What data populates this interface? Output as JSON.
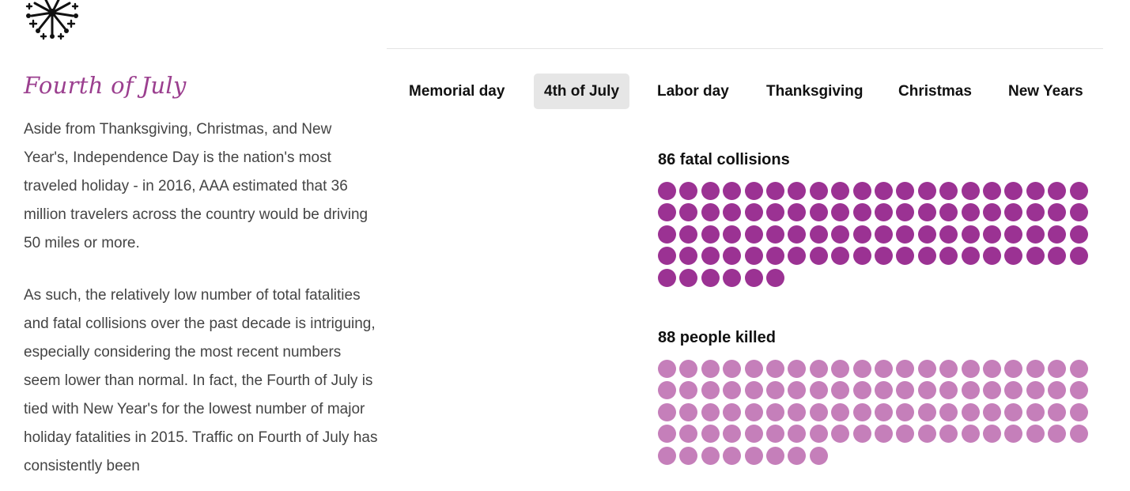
{
  "brand": {
    "logo_icon": "fireworks-icon"
  },
  "article": {
    "title": "Fourth of July",
    "paragraphs": [
      "Aside from Thanksgiving, Christmas, and New Year's, Independence Day is the nation's most traveled holiday - in 2016, AAA estimated that 36 million travelers across the country would be driving 50 miles or more.",
      "As such, the relatively low number of total fatalities and fatal collisions over the past decade is intriguing, especially considering the most recent numbers seem lower than normal. In fact, the Fourth of July is tied with New Year's for the lowest number of major holiday fatalities in 2015. Traffic on Fourth of July has consistently been"
    ]
  },
  "tabs": [
    {
      "label": "Memorial day",
      "active": false
    },
    {
      "label": "4th of July",
      "active": true
    },
    {
      "label": "Labor day",
      "active": false
    },
    {
      "label": "Thanksgiving",
      "active": false
    },
    {
      "label": "Christmas",
      "active": false
    },
    {
      "label": "New Years",
      "active": false
    }
  ],
  "stats": {
    "collisions": {
      "label": "86 fatal collisions",
      "count": 86,
      "color": "#9b3293"
    },
    "killed": {
      "label": "88 people killed",
      "count": 88,
      "color": "#c57fba"
    }
  },
  "colors": {
    "accent": "#9b3f8f",
    "active_tab_bg": "#e6e6e6"
  }
}
